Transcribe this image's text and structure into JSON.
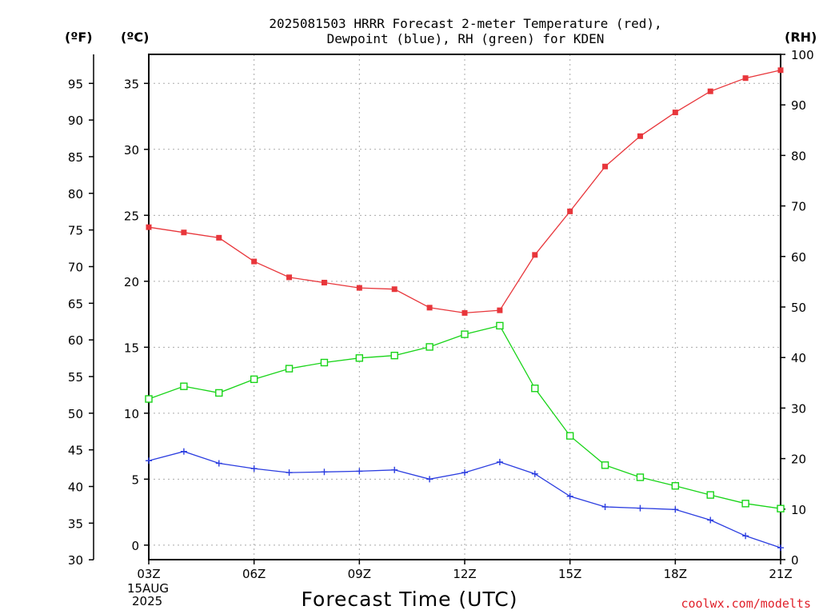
{
  "title_line1": "2025081503 HRRR Forecast 2-meter Temperature (red),",
  "title_line2": "Dewpoint (blue), RH (green) for KDEN",
  "xlabel": "Forecast Time (UTC)",
  "credit": "coolwx.com/modelts",
  "units": {
    "fahrenheit": "(ºF)",
    "celsius": "(ºC)",
    "rh": "(RH)"
  },
  "date_label": {
    "line1": "15AUG",
    "line2": "2025"
  },
  "colors": {
    "temperature": "#e8363b",
    "dewpoint": "#2b3de0",
    "rh": "#18d418"
  },
  "chart_data": {
    "type": "line",
    "title": "2025081503 HRRR Forecast 2-meter Temperature (red), Dewpoint (blue), RH (green) for KDEN",
    "xlabel": "Forecast Time (UTC)",
    "x": [
      3,
      4,
      5,
      6,
      7,
      8,
      9,
      10,
      11,
      12,
      13,
      14,
      15,
      16,
      17,
      18,
      19,
      20,
      21
    ],
    "x_ticks": [
      "03Z",
      "06Z",
      "09Z",
      "12Z",
      "15Z",
      "18Z",
      "21Z"
    ],
    "x_tick_values": [
      3,
      6,
      9,
      12,
      15,
      18,
      21
    ],
    "xlim": [
      3,
      21
    ],
    "y_celsius_ticks": [
      0,
      5,
      10,
      15,
      20,
      25,
      30,
      35
    ],
    "ylim_celsius": [
      -1.1,
      37.2
    ],
    "y_fahrenheit_ticks": [
      30,
      35,
      40,
      45,
      50,
      55,
      60,
      65,
      70,
      75,
      80,
      85,
      90,
      95
    ],
    "y_rh_ticks": [
      0,
      10,
      20,
      30,
      40,
      50,
      60,
      70,
      80,
      90,
      100
    ],
    "ylim_rh": [
      0,
      100
    ],
    "series": [
      {
        "name": "Temperature (red)",
        "axis": "celsius",
        "marker": "filled-square",
        "values": [
          24.1,
          23.7,
          23.3,
          21.5,
          20.3,
          19.9,
          19.5,
          19.4,
          18.0,
          17.6,
          17.8,
          22.0,
          25.3,
          28.7,
          31.0,
          32.8,
          34.4,
          35.4,
          36.0
        ]
      },
      {
        "name": "Dewpoint (blue)",
        "axis": "celsius",
        "marker": "plus",
        "values": [
          6.4,
          7.1,
          6.2,
          5.8,
          5.5,
          5.55,
          5.6,
          5.7,
          5.0,
          5.5,
          6.3,
          5.4,
          3.7,
          2.9,
          2.8,
          2.7,
          1.9,
          0.7,
          -0.2
        ]
      },
      {
        "name": "RH (green)",
        "axis": "rh",
        "marker": "open-square",
        "values": [
          31.8,
          34.3,
          33.0,
          35.7,
          37.8,
          39.0,
          39.9,
          40.4,
          42.1,
          44.6,
          46.3,
          33.9,
          24.5,
          18.7,
          16.3,
          14.6,
          12.8,
          11.1,
          10.1
        ]
      }
    ]
  }
}
